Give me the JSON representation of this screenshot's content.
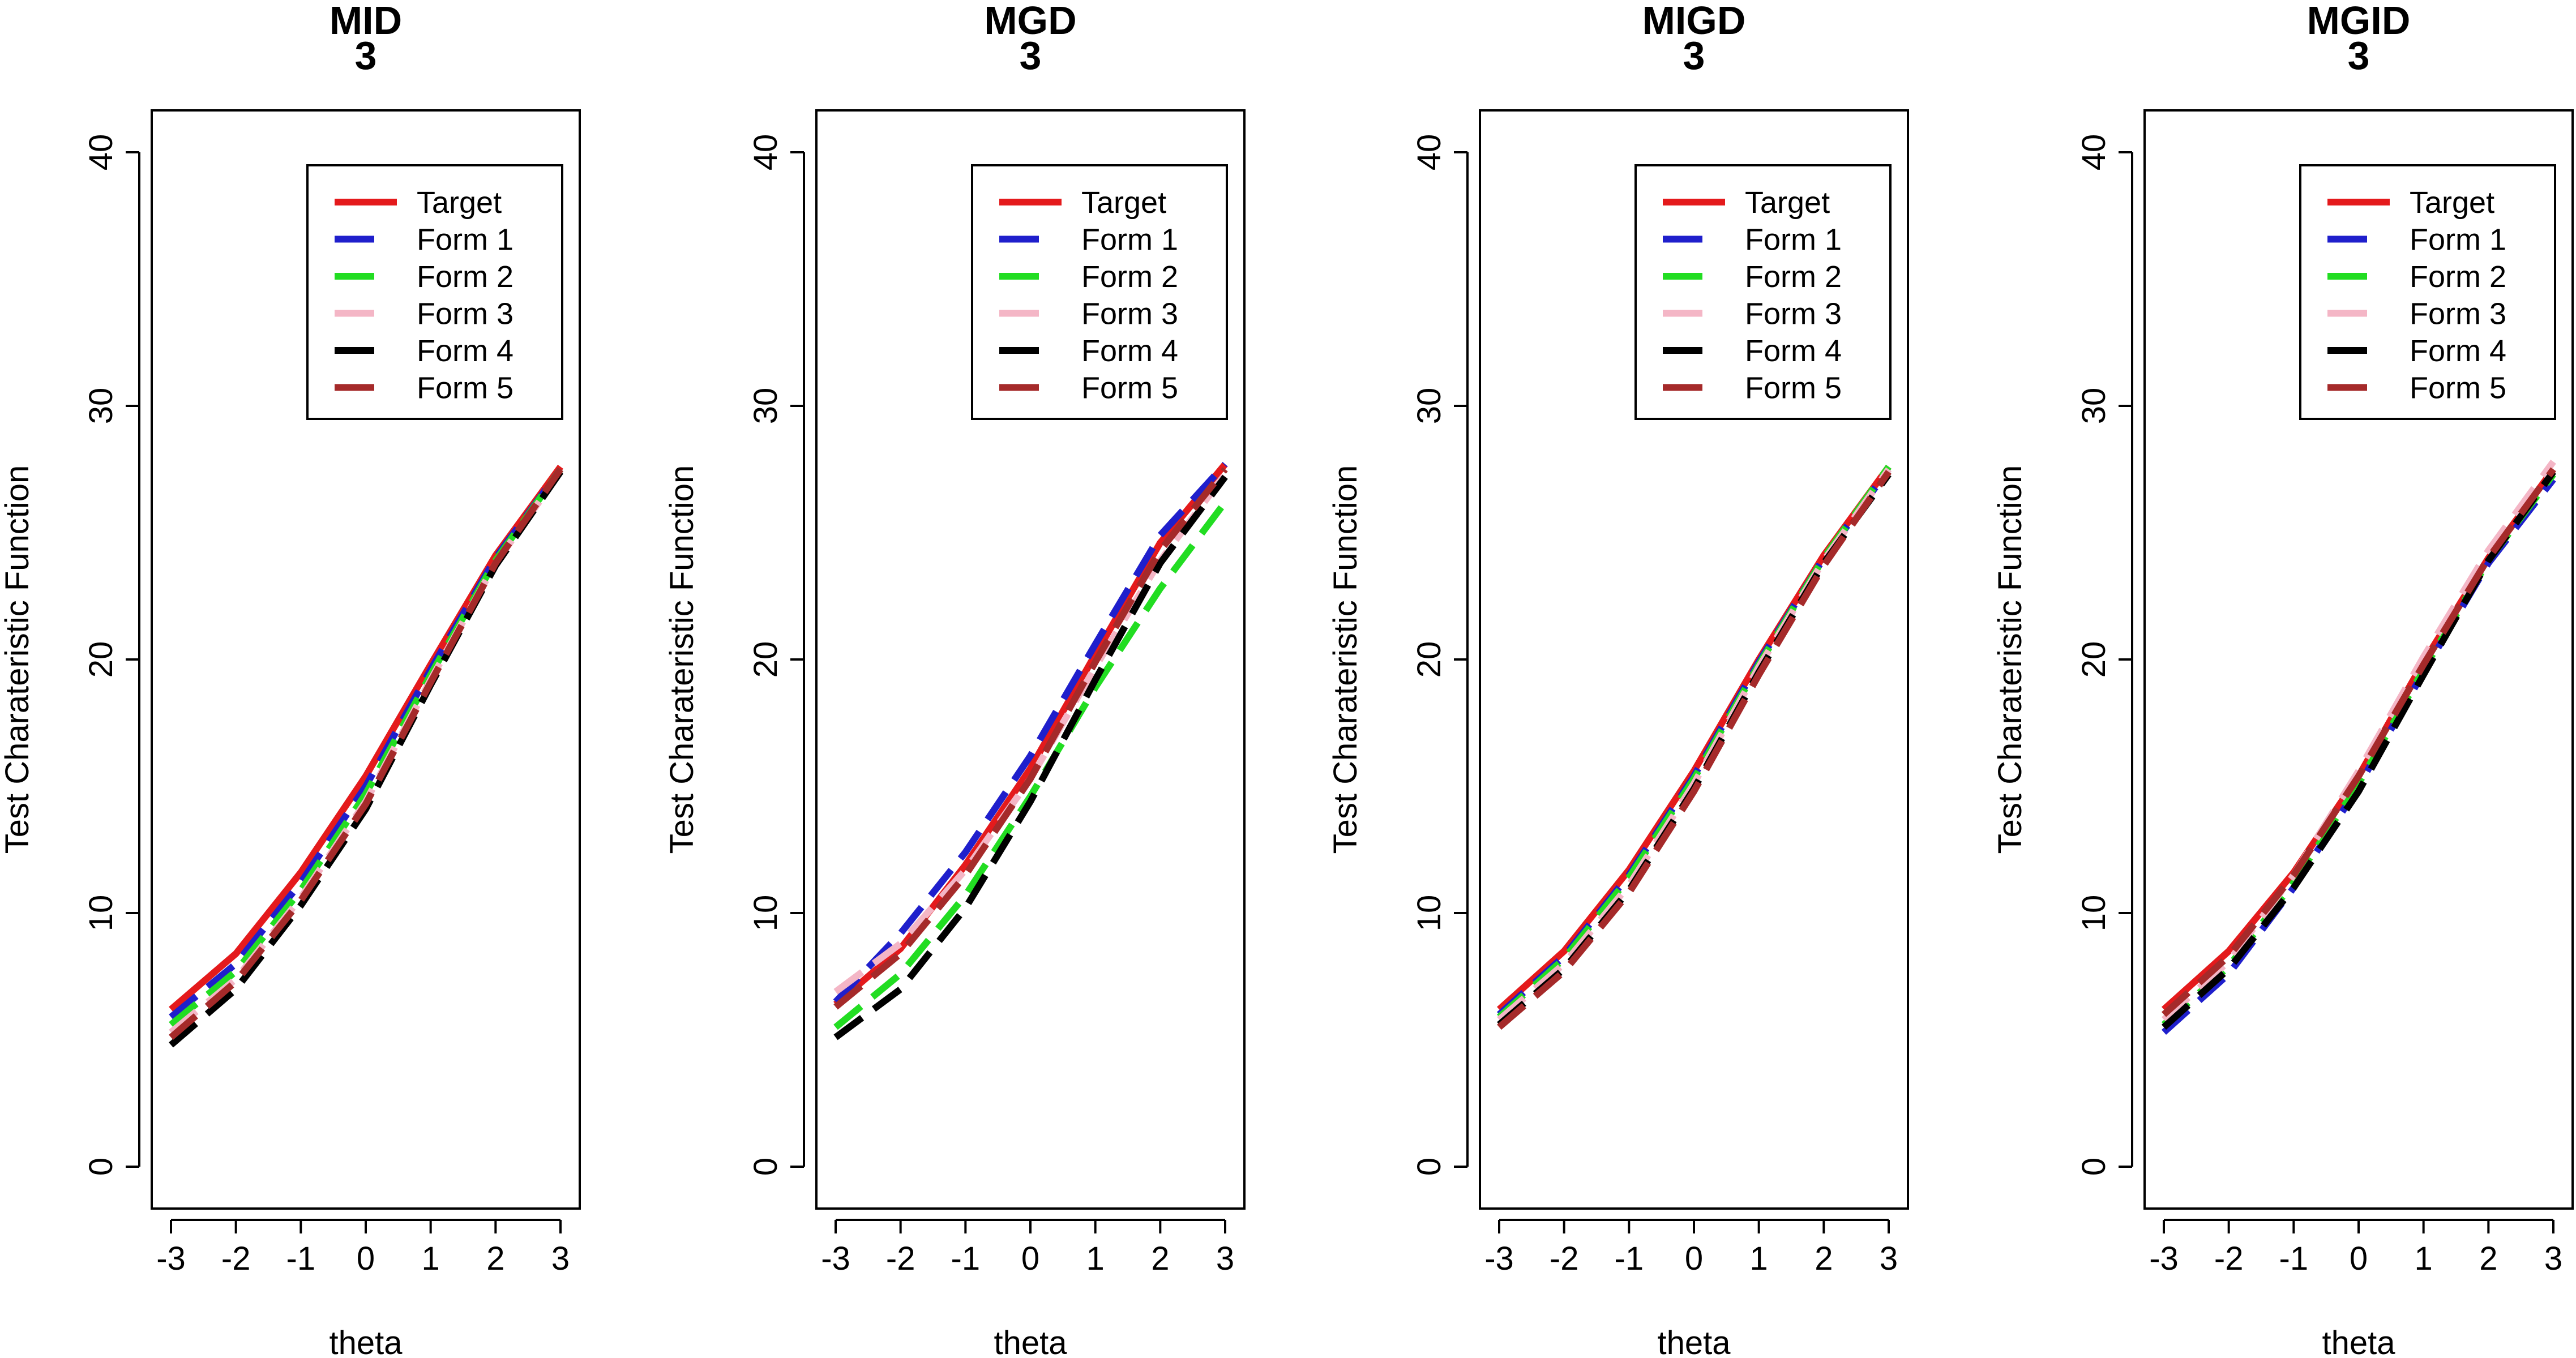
{
  "chart_data": [
    {
      "type": "line",
      "title": "MID",
      "subtitle": "3",
      "xlabel": "theta",
      "ylabel": "Test Charateristic Function",
      "xlim": [
        -3,
        3
      ],
      "ylim": [
        0,
        40
      ],
      "xticks": [
        -3,
        -2,
        -1,
        0,
        1,
        2,
        3
      ],
      "yticks": [
        0,
        10,
        20,
        30,
        40
      ],
      "x": [
        -3,
        -2,
        -1,
        0,
        1,
        2,
        3
      ],
      "legend": "top-right",
      "grid": false,
      "series": [
        {
          "name": "Target",
          "color": "#e41a1c",
          "dash": "solid",
          "values": [
            6.2,
            8.4,
            11.6,
            15.4,
            19.8,
            24.1,
            27.6
          ]
        },
        {
          "name": "Form 1",
          "color": "#1f1fcc",
          "dash": "dashed",
          "values": [
            5.9,
            8.0,
            11.2,
            15.0,
            19.6,
            24.0,
            27.5
          ]
        },
        {
          "name": "Form 2",
          "color": "#22dd22",
          "dash": "dashed",
          "values": [
            5.6,
            7.7,
            10.9,
            14.7,
            19.4,
            23.9,
            27.5
          ]
        },
        {
          "name": "Form 3",
          "color": "#f4b6c6",
          "dash": "dashed",
          "values": [
            5.3,
            7.4,
            10.6,
            14.4,
            19.2,
            23.8,
            27.4
          ]
        },
        {
          "name": "Form 4",
          "color": "#000000",
          "dash": "dashed",
          "values": [
            4.8,
            7.0,
            10.3,
            14.1,
            19.0,
            23.7,
            27.4
          ]
        },
        {
          "name": "Form 5",
          "color": "#a52a2a",
          "dash": "dashed",
          "values": [
            5.1,
            7.3,
            10.5,
            14.3,
            19.1,
            23.8,
            27.5
          ]
        }
      ]
    },
    {
      "type": "line",
      "title": "MGD",
      "subtitle": "3",
      "xlabel": "theta",
      "ylabel": "Test Charateristic Function",
      "xlim": [
        -3,
        3
      ],
      "ylim": [
        0,
        40
      ],
      "xticks": [
        -3,
        -2,
        -1,
        0,
        1,
        2,
        3
      ],
      "yticks": [
        0,
        10,
        20,
        30,
        40
      ],
      "x": [
        -3,
        -2,
        -1,
        0,
        1,
        2,
        3
      ],
      "legend": "top-right",
      "grid": false,
      "series": [
        {
          "name": "Target",
          "color": "#e41a1c",
          "dash": "solid",
          "values": [
            6.4,
            8.6,
            11.9,
            15.7,
            20.2,
            24.6,
            27.7
          ]
        },
        {
          "name": "Form 1",
          "color": "#1f1fcc",
          "dash": "dashed",
          "values": [
            6.5,
            9.2,
            12.4,
            16.2,
            20.6,
            24.9,
            27.7
          ]
        },
        {
          "name": "Form 2",
          "color": "#22dd22",
          "dash": "dashed",
          "values": [
            5.5,
            7.6,
            10.7,
            14.6,
            18.9,
            22.8,
            26.2
          ]
        },
        {
          "name": "Form 3",
          "color": "#f4b6c6",
          "dash": "dashed",
          "values": [
            6.9,
            8.8,
            11.7,
            15.3,
            19.7,
            23.9,
            27.3
          ]
        },
        {
          "name": "Form 4",
          "color": "#000000",
          "dash": "dashed",
          "values": [
            5.1,
            7.0,
            10.2,
            14.4,
            19.2,
            23.8,
            27.2
          ]
        },
        {
          "name": "Form 5",
          "color": "#a52a2a",
          "dash": "dashed",
          "values": [
            6.3,
            8.4,
            11.5,
            15.3,
            19.9,
            24.3,
            27.5
          ]
        }
      ]
    },
    {
      "type": "line",
      "title": "MIGD",
      "subtitle": "3",
      "xlabel": "theta",
      "ylabel": "Test Charateristic Function",
      "xlim": [
        -3,
        3
      ],
      "ylim": [
        0,
        40
      ],
      "xticks": [
        -3,
        -2,
        -1,
        0,
        1,
        2,
        3
      ],
      "yticks": [
        0,
        10,
        20,
        30,
        40
      ],
      "x": [
        -3,
        -2,
        -1,
        0,
        1,
        2,
        3
      ],
      "legend": "top-right",
      "grid": false,
      "series": [
        {
          "name": "Target",
          "color": "#e41a1c",
          "dash": "solid",
          "values": [
            6.2,
            8.5,
            11.7,
            15.6,
            20.0,
            24.1,
            27.6
          ]
        },
        {
          "name": "Form 1",
          "color": "#1f1fcc",
          "dash": "dashed",
          "values": [
            6.0,
            8.3,
            11.5,
            15.4,
            19.9,
            24.0,
            27.5
          ]
        },
        {
          "name": "Form 2",
          "color": "#22dd22",
          "dash": "dashed",
          "values": [
            5.9,
            8.2,
            11.4,
            15.3,
            19.8,
            24.0,
            27.6
          ]
        },
        {
          "name": "Form 3",
          "color": "#f4b6c6",
          "dash": "dashed",
          "values": [
            5.8,
            8.0,
            11.1,
            15.1,
            19.7,
            23.9,
            27.5
          ]
        },
        {
          "name": "Form 4",
          "color": "#000000",
          "dash": "dashed",
          "values": [
            5.6,
            7.8,
            10.9,
            14.9,
            19.5,
            23.8,
            27.3
          ]
        },
        {
          "name": "Form 5",
          "color": "#a52a2a",
          "dash": "dashed",
          "values": [
            5.5,
            7.7,
            10.8,
            14.8,
            19.4,
            23.7,
            27.4
          ]
        }
      ]
    },
    {
      "type": "line",
      "title": "MGID",
      "subtitle": "3",
      "xlabel": "theta",
      "ylabel": "Test Charateristic Function",
      "xlim": [
        -3,
        3
      ],
      "ylim": [
        0,
        40
      ],
      "xticks": [
        -3,
        -2,
        -1,
        0,
        1,
        2,
        3
      ],
      "yticks": [
        0,
        10,
        20,
        30,
        40
      ],
      "x": [
        -3,
        -2,
        -1,
        0,
        1,
        2,
        3
      ],
      "legend": "top-right",
      "grid": false,
      "series": [
        {
          "name": "Target",
          "color": "#e41a1c",
          "dash": "solid",
          "values": [
            6.2,
            8.5,
            11.6,
            15.4,
            19.9,
            24.0,
            27.5
          ]
        },
        {
          "name": "Form 1",
          "color": "#1f1fcc",
          "dash": "dashed",
          "values": [
            5.3,
            7.6,
            11.0,
            15.0,
            19.5,
            23.8,
            27.1
          ]
        },
        {
          "name": "Form 2",
          "color": "#22dd22",
          "dash": "dashed",
          "values": [
            5.6,
            7.9,
            11.2,
            15.1,
            19.6,
            23.9,
            27.3
          ]
        },
        {
          "name": "Form 3",
          "color": "#f4b6c6",
          "dash": "dashed",
          "values": [
            5.8,
            8.1,
            11.5,
            15.6,
            20.1,
            24.3,
            27.8
          ]
        },
        {
          "name": "Form 4",
          "color": "#000000",
          "dash": "dashed",
          "values": [
            5.5,
            7.8,
            11.0,
            14.8,
            19.4,
            23.9,
            27.4
          ]
        },
        {
          "name": "Form 5",
          "color": "#a52a2a",
          "dash": "dashed",
          "values": [
            6.0,
            8.3,
            11.5,
            15.4,
            19.8,
            24.0,
            27.5
          ]
        }
      ]
    }
  ]
}
